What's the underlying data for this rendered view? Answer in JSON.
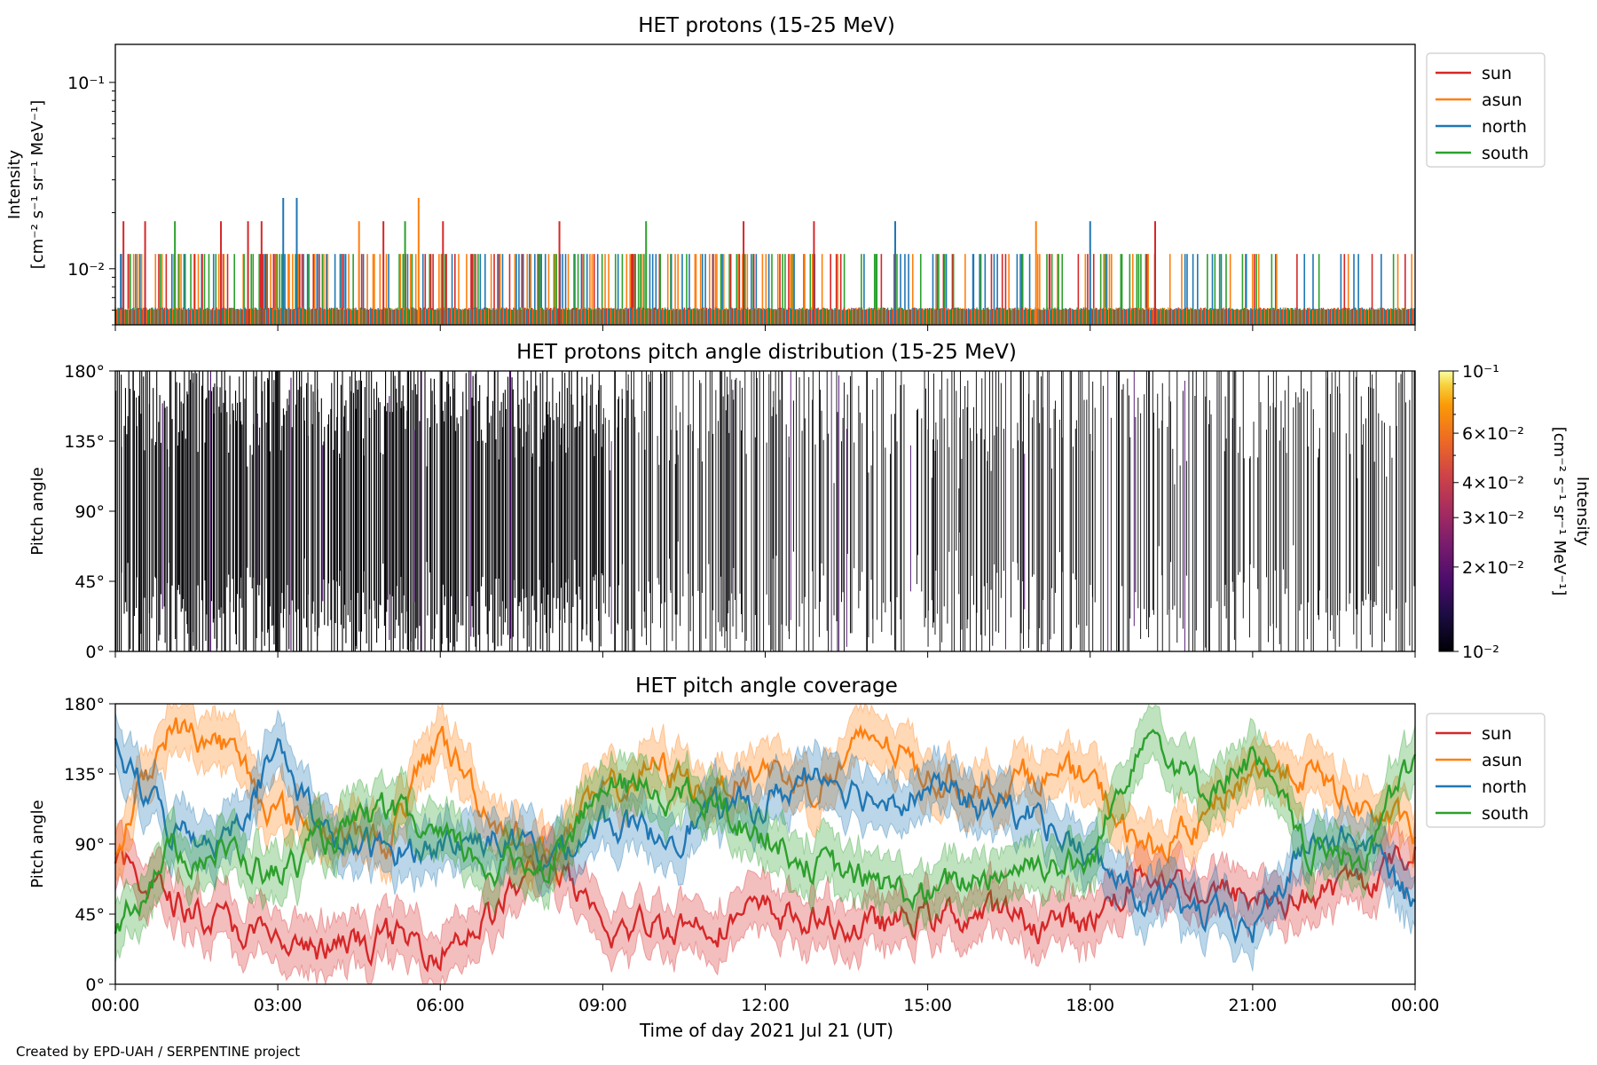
{
  "footer": {
    "credit": "Created by EPD-UAH / SERPENTINE project"
  },
  "chart_data": [
    {
      "type": "line",
      "title": "HET protons (15-25 MeV)",
      "ylabel_line1": "Intensity",
      "ylabel_line2": "[cm⁻² s⁻¹ sr⁻¹ MeV⁻¹]",
      "yscale": "log",
      "ylim": [
        0.005,
        0.16
      ],
      "yticks": [
        {
          "value": 0.01,
          "label": "10⁻²"
        },
        {
          "value": 0.1,
          "label": "10⁻¹"
        }
      ],
      "xlim_hours": [
        0,
        24
      ],
      "legend_position": "upper-right-outside",
      "series": [
        {
          "name": "sun",
          "color": "#d62728"
        },
        {
          "name": "asun",
          "color": "#ff7f0e"
        },
        {
          "name": "north",
          "color": "#1f77b4"
        },
        {
          "name": "south",
          "color": "#2ca02c"
        }
      ],
      "intensity_levels": [
        0.006,
        0.012,
        0.018,
        0.024
      ],
      "notable_spikes": [
        {
          "series": "north",
          "hour": 3.1,
          "value": 0.024
        },
        {
          "series": "north",
          "hour": 3.35,
          "value": 0.024
        },
        {
          "series": "asun",
          "hour": 5.6,
          "value": 0.024
        },
        {
          "series": "sun",
          "hour": 0.15,
          "value": 0.018
        },
        {
          "series": "sun",
          "hour": 0.55,
          "value": 0.018
        },
        {
          "series": "south",
          "hour": 1.1,
          "value": 0.018
        },
        {
          "series": "sun",
          "hour": 1.95,
          "value": 0.018
        },
        {
          "series": "sun",
          "hour": 2.45,
          "value": 0.018
        },
        {
          "series": "sun",
          "hour": 2.7,
          "value": 0.018
        },
        {
          "series": "asun",
          "hour": 4.5,
          "value": 0.018
        },
        {
          "series": "sun",
          "hour": 4.95,
          "value": 0.018
        },
        {
          "series": "south",
          "hour": 5.35,
          "value": 0.018
        },
        {
          "series": "sun",
          "hour": 6.05,
          "value": 0.018
        },
        {
          "series": "sun",
          "hour": 8.2,
          "value": 0.018
        },
        {
          "series": "south",
          "hour": 9.8,
          "value": 0.018
        },
        {
          "series": "sun",
          "hour": 11.6,
          "value": 0.018
        },
        {
          "series": "sun",
          "hour": 12.9,
          "value": 0.018
        },
        {
          "series": "north",
          "hour": 14.4,
          "value": 0.018
        },
        {
          "series": "asun",
          "hour": 17.0,
          "value": 0.018
        },
        {
          "series": "north",
          "hour": 18.0,
          "value": 0.018
        },
        {
          "series": "sun",
          "hour": 19.2,
          "value": 0.018
        }
      ]
    },
    {
      "type": "heatmap",
      "title": "HET protons pitch angle distribution (15-25 MeV)",
      "ylabel": "Pitch angle",
      "ylim": [
        0,
        180
      ],
      "yticks": [
        "0°",
        "45°",
        "90°",
        "135°",
        "180°"
      ],
      "xlim_hours": [
        0,
        24
      ],
      "colorbar": {
        "scale": "log",
        "min": 0.01,
        "max": 0.1,
        "label_line1": "Intensity",
        "label_line2": "[cm⁻² s⁻¹ sr⁻¹ MeV⁻¹]",
        "colormap": "inferno",
        "ticks": [
          {
            "value": 0.1,
            "label": "10⁻¹"
          },
          {
            "value": 0.06,
            "label": "6×10⁻²"
          },
          {
            "value": 0.04,
            "label": "4×10⁻²"
          },
          {
            "value": 0.03,
            "label": "3×10⁻²"
          },
          {
            "value": 0.02,
            "label": "2×10⁻²"
          },
          {
            "value": 0.01,
            "label": "10⁻²"
          }
        ]
      }
    },
    {
      "type": "line",
      "title": "HET pitch angle coverage",
      "ylabel": "Pitch angle",
      "ylim": [
        0,
        180
      ],
      "yticks": [
        "0°",
        "45°",
        "90°",
        "135°",
        "180°"
      ],
      "xlim_hours": [
        0,
        24
      ],
      "xlabel": "Time of day 2021 Jul 21 (UT)",
      "xticks": [
        "00:00",
        "03:00",
        "06:00",
        "09:00",
        "12:00",
        "15:00",
        "18:00",
        "21:00",
        "00:00"
      ],
      "legend_position": "upper-right-outside",
      "x_hours": [
        0,
        1,
        2,
        3,
        4,
        5,
        6,
        7,
        8,
        9,
        10,
        11,
        12,
        13,
        14,
        15,
        16,
        17,
        18,
        19,
        20,
        21,
        22,
        23,
        24
      ],
      "series": [
        {
          "name": "sun",
          "color": "#d62728",
          "values": [
            80,
            55,
            40,
            25,
            20,
            30,
            25,
            45,
            85,
            30,
            40,
            40,
            45,
            40,
            35,
            45,
            45,
            40,
            40,
            75,
            60,
            55,
            55,
            65,
            85
          ]
        },
        {
          "name": "asun",
          "color": "#ff7f0e",
          "values": [
            90,
            165,
            155,
            110,
            100,
            90,
            160,
            105,
            85,
            120,
            140,
            125,
            140,
            125,
            160,
            135,
            125,
            135,
            130,
            85,
            100,
            140,
            135,
            115,
            95
          ]
        },
        {
          "name": "north",
          "color": "#1f77b4",
          "values": [
            150,
            100,
            95,
            150,
            90,
            85,
            90,
            95,
            80,
            105,
            95,
            110,
            115,
            140,
            120,
            125,
            115,
            110,
            80,
            55,
            45,
            35,
            90,
            95,
            50
          ]
        },
        {
          "name": "south",
          "color": "#2ca02c",
          "values": [
            40,
            85,
            85,
            70,
            95,
            110,
            90,
            75,
            80,
            125,
            125,
            115,
            95,
            75,
            65,
            55,
            70,
            80,
            75,
            170,
            125,
            145,
            85,
            80,
            145
          ]
        }
      ]
    }
  ]
}
